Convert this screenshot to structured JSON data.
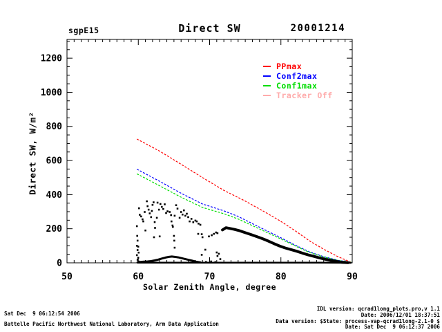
{
  "header": {
    "site": "sgpE15",
    "title": "Direct SW",
    "date": "20001214"
  },
  "legend": {
    "items": [
      {
        "label": "PPmax",
        "color": "#ff0000"
      },
      {
        "label": "Conf2max",
        "color": "#0000ff"
      },
      {
        "label": "Conf1max",
        "color": "#00dd00"
      },
      {
        "label": "Tracker Off",
        "color": "#ffaaaa"
      }
    ]
  },
  "footer": {
    "left_line1": "Sat Dec  9 06:12:54 2006",
    "left_line2": "Battelle Pacific Northwest National Laboratory, Arm Data Application",
    "right_line1": "IDL version: qcrad1long_plots.pro,v 1.1",
    "right_line2": "Date: 2006/12/01 18:37:51",
    "right_line3": "Data version: $State: process-vap-qcrad1long-2.1-0 $",
    "right_line4": "Date: Sat Dec  9 06:12:37 2006"
  },
  "chart_data": {
    "type": "scatter",
    "title": "Direct SW",
    "xlabel": "Solar Zenith Angle, degree",
    "ylabel": "Direct SW, W/m²",
    "xlim": [
      50,
      90
    ],
    "ylim": [
      0,
      1310
    ],
    "x_ticks": [
      50,
      60,
      70,
      80,
      90
    ],
    "y_ticks": [
      0,
      200,
      400,
      600,
      800,
      1000,
      1200
    ],
    "x_minor_step": 1,
    "y_minor_step": 50,
    "grid": false,
    "legend_position": "upper-right-inside",
    "series": [
      {
        "name": "PPmax",
        "type": "line",
        "color": "#ff0000",
        "points": [
          [
            59.8,
            726
          ],
          [
            63,
            655
          ],
          [
            66,
            578
          ],
          [
            69,
            500
          ],
          [
            72,
            425
          ],
          [
            75,
            362
          ],
          [
            78,
            292
          ],
          [
            80,
            243
          ],
          [
            82,
            188
          ],
          [
            84,
            129
          ],
          [
            86,
            80
          ],
          [
            88,
            36
          ],
          [
            89.8,
            4
          ]
        ]
      },
      {
        "name": "Conf2max",
        "type": "line",
        "color": "#0000ff",
        "points": [
          [
            59.8,
            549
          ],
          [
            63,
            478
          ],
          [
            66,
            408
          ],
          [
            69,
            345
          ],
          [
            72,
            305
          ],
          [
            74,
            272
          ],
          [
            76,
            230
          ],
          [
            78,
            188
          ],
          [
            80,
            147
          ],
          [
            82,
            104
          ],
          [
            84,
            64
          ],
          [
            86,
            36
          ],
          [
            88,
            15
          ],
          [
            89.9,
            3
          ]
        ]
      },
      {
        "name": "Conf1max",
        "type": "line",
        "color": "#00dd00",
        "points": [
          [
            59.8,
            522
          ],
          [
            63,
            452
          ],
          [
            66,
            385
          ],
          [
            69,
            325
          ],
          [
            72,
            288
          ],
          [
            74,
            257
          ],
          [
            76,
            218
          ],
          [
            78,
            179
          ],
          [
            80,
            140
          ],
          [
            82,
            99
          ],
          [
            84,
            61
          ],
          [
            86,
            34
          ],
          [
            88,
            14
          ],
          [
            89.9,
            3
          ]
        ]
      },
      {
        "name": "Tracker Off",
        "type": "line",
        "color": "#ffaaaa",
        "points": []
      },
      {
        "name": "measured-direct-sw-band",
        "type": "thickline",
        "color": "#000000",
        "width": 4,
        "points": [
          [
            71.8,
            193
          ],
          [
            72.3,
            206
          ],
          [
            72.8,
            202
          ],
          [
            73.5,
            196
          ],
          [
            74.2,
            188
          ],
          [
            75.0,
            177
          ],
          [
            75.8,
            166
          ],
          [
            76.6,
            154
          ],
          [
            77.4,
            142
          ],
          [
            78.2,
            128
          ],
          [
            79.0,
            113
          ],
          [
            79.8,
            99
          ],
          [
            80.6,
            87
          ],
          [
            81.4,
            78
          ],
          [
            82.2,
            68
          ],
          [
            83.0,
            57
          ],
          [
            83.8,
            47
          ],
          [
            84.6,
            38
          ],
          [
            85.4,
            29
          ],
          [
            86.2,
            21
          ],
          [
            87.0,
            14
          ],
          [
            87.8,
            8
          ],
          [
            88.6,
            3
          ],
          [
            89.4,
            1
          ]
        ]
      },
      {
        "name": "measured-morning-bump",
        "type": "thickline",
        "color": "#000000",
        "width": 3,
        "points": [
          [
            59.9,
            3
          ],
          [
            60.3,
            5
          ],
          [
            60.8,
            7
          ],
          [
            61.3,
            8
          ],
          [
            61.8,
            10
          ],
          [
            62.3,
            14
          ],
          [
            62.8,
            19
          ],
          [
            63.3,
            25
          ],
          [
            63.8,
            31
          ],
          [
            64.3,
            35
          ],
          [
            64.7,
            37
          ],
          [
            65.1,
            35
          ],
          [
            65.6,
            32
          ],
          [
            66.1,
            27
          ],
          [
            66.6,
            22
          ],
          [
            67.1,
            17
          ],
          [
            67.6,
            12
          ],
          [
            68.1,
            7
          ],
          [
            68.7,
            3
          ]
        ]
      },
      {
        "name": "measured-baseline",
        "type": "thickline",
        "color": "#000000",
        "width": 2.5,
        "points": [
          [
            59.9,
            1
          ],
          [
            65,
            1
          ],
          [
            68,
            1
          ],
          [
            71,
            1
          ],
          [
            74,
            1
          ],
          [
            78,
            1
          ],
          [
            82,
            1
          ],
          [
            86,
            1
          ],
          [
            89.8,
            0
          ]
        ]
      },
      {
        "name": "measured-scatter",
        "type": "scatter",
        "color": "#000000",
        "marker_px": 2.6,
        "points": [
          [
            59.8,
            215
          ],
          [
            59.85,
            158
          ],
          [
            59.9,
            130
          ],
          [
            59.8,
            100
          ],
          [
            60.0,
            95
          ],
          [
            59.9,
            75
          ],
          [
            60.05,
            60
          ],
          [
            59.8,
            45
          ],
          [
            60.0,
            30
          ],
          [
            59.9,
            18
          ],
          [
            60.05,
            8
          ],
          [
            60.1,
            320
          ],
          [
            60.2,
            282
          ],
          [
            60.4,
            272
          ],
          [
            60.6,
            255
          ],
          [
            60.7,
            243
          ],
          [
            60.9,
            298
          ],
          [
            61.0,
            190
          ],
          [
            61.2,
            361
          ],
          [
            61.3,
            332
          ],
          [
            61.45,
            312
          ],
          [
            61.6,
            290
          ],
          [
            61.8,
            268
          ],
          [
            61.9,
            304
          ],
          [
            62.0,
            340
          ],
          [
            62.15,
            355
          ],
          [
            62.3,
            239
          ],
          [
            62.35,
            205
          ],
          [
            62.2,
            150
          ],
          [
            62.6,
            264
          ],
          [
            62.7,
            353
          ],
          [
            62.9,
            312
          ],
          [
            63.0,
            155
          ],
          [
            63.1,
            345
          ],
          [
            63.3,
            328
          ],
          [
            63.5,
            316
          ],
          [
            63.7,
            343
          ],
          [
            63.9,
            292
          ],
          [
            64.1,
            302
          ],
          [
            64.4,
            298
          ],
          [
            64.6,
            280
          ],
          [
            64.65,
            243
          ],
          [
            64.8,
            219
          ],
          [
            64.85,
            211
          ],
          [
            65.0,
            158
          ],
          [
            65.05,
            130
          ],
          [
            65.1,
            276
          ],
          [
            65.1,
            89
          ],
          [
            65.3,
            338
          ],
          [
            65.5,
            318
          ],
          [
            65.8,
            264
          ],
          [
            66.0,
            298
          ],
          [
            66.2,
            283
          ],
          [
            66.4,
            308
          ],
          [
            66.6,
            276
          ],
          [
            66.8,
            288
          ],
          [
            67.0,
            268
          ],
          [
            67.2,
            243
          ],
          [
            67.45,
            258
          ],
          [
            67.7,
            238
          ],
          [
            68.0,
            248
          ],
          [
            68.2,
            243
          ],
          [
            68.45,
            230
          ],
          [
            68.7,
            223
          ],
          [
            68.4,
            170
          ],
          [
            68.9,
            168
          ],
          [
            69.0,
            150
          ],
          [
            68.9,
            47
          ],
          [
            69.4,
            77
          ],
          [
            69.9,
            155
          ],
          [
            70.3,
            162
          ],
          [
            70.6,
            170
          ],
          [
            70.9,
            178
          ],
          [
            71.1,
            174
          ],
          [
            71.0,
            61
          ],
          [
            71.3,
            53
          ],
          [
            71.1,
            40
          ],
          [
            71.5,
            22
          ],
          [
            70.2,
            8
          ],
          [
            69.5,
            5
          ],
          [
            70.8,
            4
          ]
        ]
      }
    ]
  }
}
